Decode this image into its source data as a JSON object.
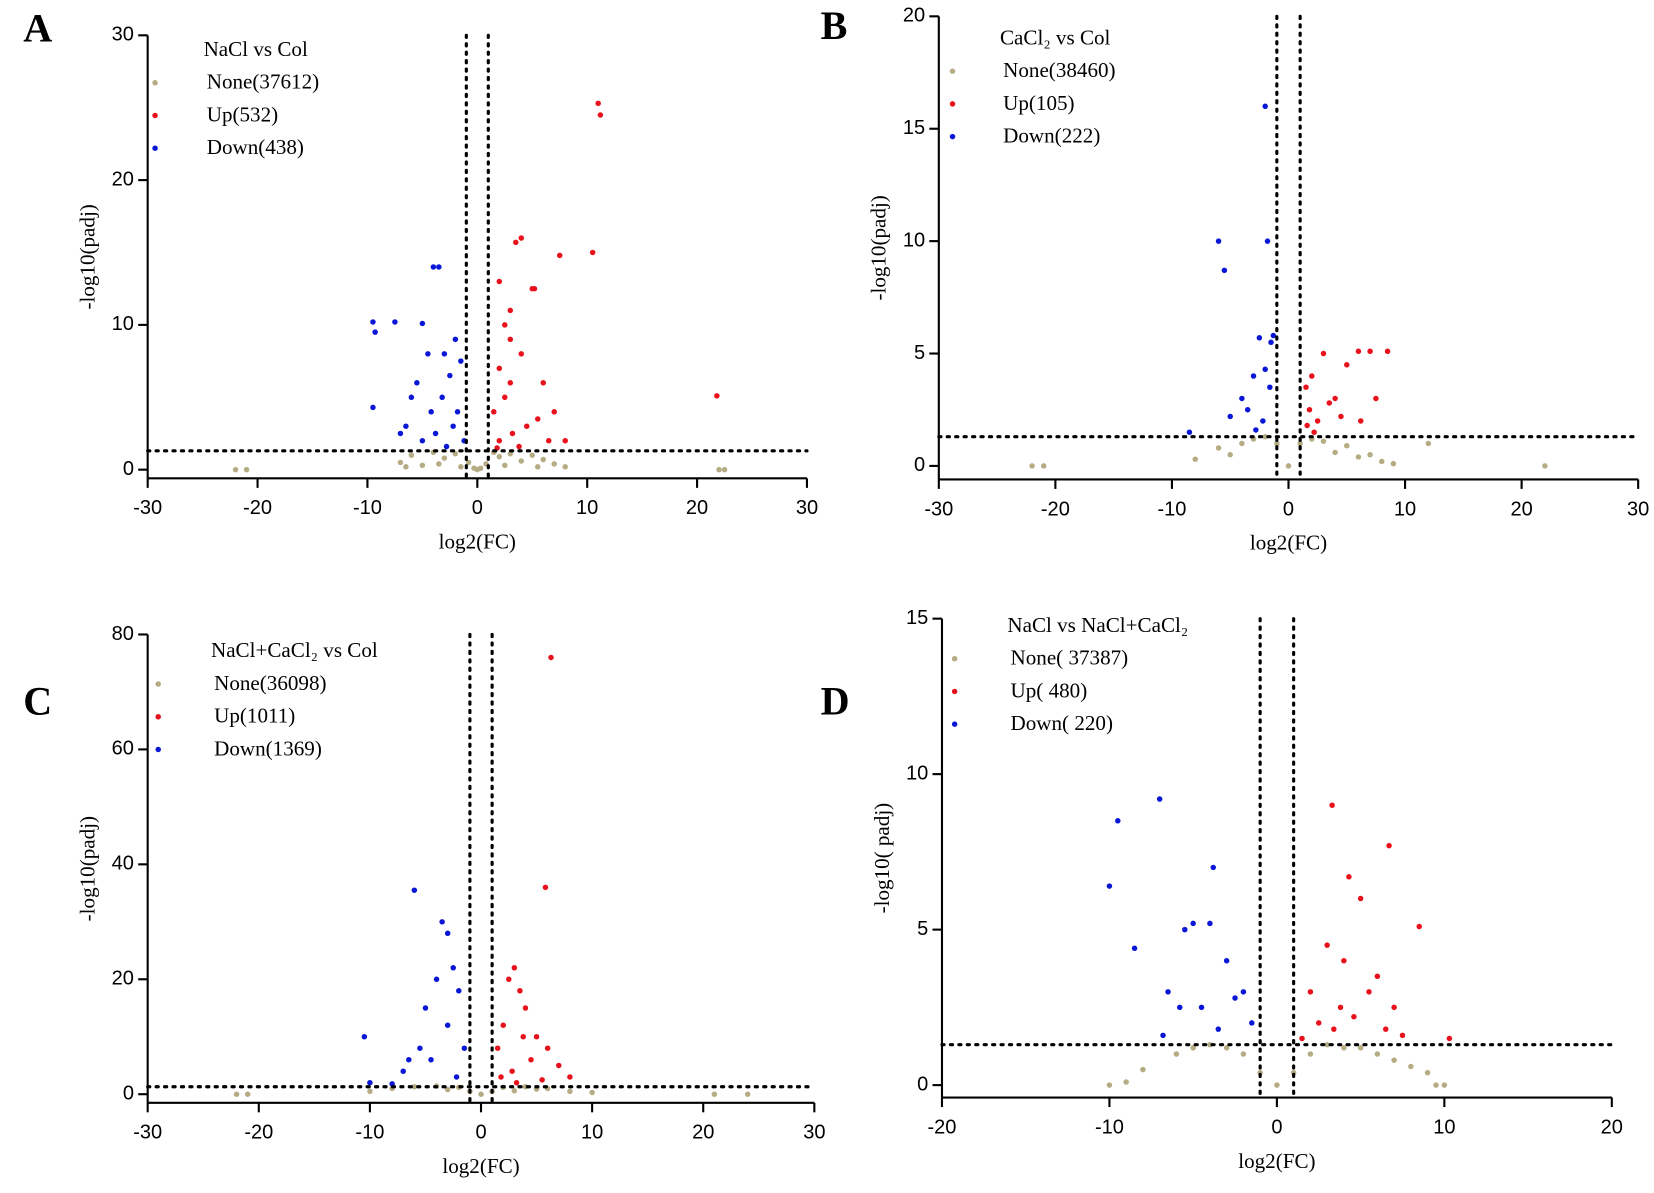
{
  "chart_data": [
    {
      "type": "scatter",
      "panel": "A",
      "legend_title": "NaCl vs Col",
      "xlabel": "log2(FC)",
      "ylabel": "-log10(padj)",
      "xlim": [
        -30,
        30
      ],
      "ylim": [
        -0.6,
        30
      ],
      "xticks": [
        -30,
        -20,
        -10,
        0,
        10,
        20,
        30
      ],
      "yticks": [
        0,
        10,
        20,
        30
      ],
      "thresholds": {
        "x": [
          -1,
          1
        ],
        "y": 1.3
      },
      "series": [
        {
          "name": "None(37612)",
          "color": "#b5ac84",
          "x": [
            -22,
            -21,
            -7,
            -6,
            -5,
            -4,
            -3,
            -2,
            -1.5,
            -0.8,
            -0.3,
            0,
            0.3,
            0.8,
            1.5,
            2,
            3,
            4,
            5,
            6,
            7,
            8,
            22,
            22.5,
            -6.5,
            -3.5,
            2.5,
            5.5
          ],
          "y": [
            0,
            0,
            0.5,
            1,
            0.3,
            1.2,
            0.8,
            1.1,
            0.2,
            0.5,
            0.1,
            0,
            0.1,
            0.4,
            1.2,
            0.9,
            1.1,
            0.6,
            1,
            0.7,
            0.4,
            0.2,
            0,
            0,
            0.2,
            0.4,
            0.3,
            0.2
          ]
        },
        {
          "name": "Up(532)",
          "color": "#e8101a",
          "x": [
            11,
            11.2,
            10.5,
            4,
            3.5,
            7.5,
            2,
            3,
            5,
            5.2,
            2.5,
            3,
            4,
            6,
            7,
            2,
            3,
            2.5,
            1.5,
            4.5,
            5.5,
            6.5,
            8,
            3.2,
            21.8,
            2,
            3.8,
            1.8
          ],
          "y": [
            25.3,
            24.5,
            15,
            16,
            15.7,
            14.8,
            13,
            11,
            12.5,
            12.5,
            10,
            9,
            8,
            6,
            4,
            7,
            6,
            5,
            4,
            3,
            3.5,
            2,
            2,
            2.5,
            5.1,
            2,
            1.6,
            1.5
          ]
        },
        {
          "name": "Down(438)",
          "color": "#0a16d6",
          "x": [
            -9.5,
            -9.3,
            -7.5,
            -4,
            -3.5,
            -5,
            -4.5,
            -3,
            -2,
            -1.5,
            -6,
            -5.5,
            -2.5,
            -3.2,
            -4.2,
            -1.8,
            -6.5,
            -7,
            -2.2,
            -3.8,
            -9.5,
            -5,
            -2.8,
            -1.2
          ],
          "y": [
            10.2,
            9.5,
            10.2,
            14,
            14,
            10.1,
            8,
            8,
            9,
            7.5,
            5,
            6,
            6.5,
            5,
            4,
            4,
            3,
            2.5,
            3,
            2.5,
            4.3,
            2,
            1.6,
            2
          ]
        }
      ]
    },
    {
      "type": "scatter",
      "panel": "B",
      "legend_title": "CaCl₂ vs Col",
      "xlabel": "log2(FC)",
      "ylabel": "-log10(padj)",
      "xlim": [
        -30,
        30
      ],
      "ylim": [
        -0.6,
        20
      ],
      "xticks": [
        -30,
        -20,
        -10,
        0,
        10,
        20,
        30
      ],
      "yticks": [
        0,
        5,
        10,
        15,
        20
      ],
      "thresholds": {
        "x": [
          -1,
          1
        ],
        "y": 1.3
      },
      "series": [
        {
          "name": "None(38460)",
          "color": "#b5ac84",
          "x": [
            -22,
            -21,
            -8,
            -6,
            -4,
            -3,
            -2,
            -1,
            0,
            1,
            2,
            3,
            5,
            7,
            8,
            9,
            12,
            22,
            -5,
            4,
            6
          ],
          "y": [
            0,
            0,
            0.3,
            0.8,
            1,
            1.2,
            1.3,
            1,
            0,
            1,
            1.2,
            1.1,
            0.9,
            0.5,
            0.2,
            0.1,
            1,
            0,
            0.5,
            0.6,
            0.4
          ]
        },
        {
          "name": "Up(105)",
          "color": "#e8101a",
          "x": [
            1.5,
            2,
            3,
            4,
            6,
            7,
            8.5,
            5,
            2.5,
            1.8,
            3.5,
            7.5,
            4.5,
            2.2,
            6.2,
            1.6
          ],
          "y": [
            3.5,
            4,
            5,
            3,
            5.1,
            5.1,
            5.1,
            4.5,
            2,
            2.5,
            2.8,
            3,
            2.2,
            1.5,
            2,
            1.8
          ]
        },
        {
          "name": "Down(222)",
          "color": "#0a16d6",
          "x": [
            -6,
            -5.5,
            -2,
            -1.8,
            -1.5,
            -2.5,
            -3,
            -2,
            -1.3,
            -4,
            -5,
            -3.5,
            -1.6,
            -2.2,
            -8.5,
            -2.8
          ],
          "y": [
            10,
            8.7,
            16,
            10,
            5.5,
            5.7,
            4,
            4.3,
            5.8,
            3,
            2.2,
            2.5,
            3.5,
            2,
            1.5,
            1.6
          ]
        }
      ]
    },
    {
      "type": "scatter",
      "panel": "C",
      "legend_title": "NaCl+CaCl₂ vs Col",
      "xlabel": "log2(FC)",
      "ylabel": "-log10(padj)",
      "xlim": [
        -30,
        30
      ],
      "ylim": [
        -1.5,
        80
      ],
      "xticks": [
        -30,
        -20,
        -10,
        0,
        10,
        20,
        30
      ],
      "yticks": [
        0,
        20,
        40,
        60,
        80
      ],
      "thresholds": {
        "x": [
          -1,
          1
        ],
        "y": 1.3
      },
      "series": [
        {
          "name": "None(36098)",
          "color": "#b5ac84",
          "x": [
            -22,
            -21,
            -10,
            -8,
            -6,
            -4,
            -2,
            -1,
            0,
            1,
            2,
            4,
            6,
            8,
            10,
            21,
            24,
            -3,
            3,
            5
          ],
          "y": [
            0,
            0,
            0.5,
            1,
            1.3,
            1.4,
            1.2,
            0.5,
            0,
            0.5,
            1.2,
            1.3,
            1,
            0.5,
            0.3,
            0,
            0,
            0.8,
            0.6,
            0.9
          ]
        },
        {
          "name": "Up(1011)",
          "color": "#e8101a",
          "x": [
            6.3,
            5.8,
            3,
            2.5,
            3.5,
            4,
            5,
            2,
            1.5,
            6,
            7,
            8,
            2.8,
            4.5,
            3.2,
            1.8,
            5.5,
            3.8
          ],
          "y": [
            76,
            36,
            22,
            20,
            18,
            15,
            10,
            12,
            8,
            8,
            5,
            3,
            4,
            6,
            2,
            3,
            2.5,
            10
          ]
        },
        {
          "name": "Down(1369)",
          "color": "#0a16d6",
          "x": [
            -6,
            -3.5,
            -3,
            -4,
            -2.5,
            -2,
            -5,
            -10.5,
            -10,
            -6.5,
            -7,
            -3,
            -1.5,
            -4.5,
            -2.2,
            -5.5,
            -8
          ],
          "y": [
            35.5,
            30,
            28,
            20,
            22,
            18,
            15,
            10,
            2,
            6,
            4,
            12,
            8,
            6,
            3,
            8,
            1.8
          ]
        }
      ]
    },
    {
      "type": "scatter",
      "panel": "D",
      "legend_title": "NaCl vs NaCl+CaCl₂",
      "xlabel": "log2(FC)",
      "ylabel": "-log10( padj)",
      "xlim": [
        -20,
        20
      ],
      "ylim": [
        -0.4,
        15
      ],
      "xticks": [
        -20,
        -10,
        0,
        10,
        20
      ],
      "yticks": [
        0,
        5,
        10,
        15
      ],
      "thresholds": {
        "x": [
          -1,
          1
        ],
        "y": 1.3
      },
      "series": [
        {
          "name": "None( 37387)",
          "color": "#b5ac84",
          "x": [
            -10,
            -8,
            -6,
            -5,
            -4,
            -3,
            -2,
            -1,
            0,
            1,
            2,
            3,
            4,
            5,
            6,
            7,
            8,
            9,
            10,
            -9,
            9.5
          ],
          "y": [
            0,
            0.5,
            1,
            1.2,
            1.3,
            1.2,
            1,
            0.4,
            0,
            0.4,
            1,
            1.3,
            1.2,
            1.2,
            1,
            0.8,
            0.6,
            0.4,
            0,
            0.1,
            0
          ]
        },
        {
          "name": "Up( 480)",
          "color": "#e8101a",
          "x": [
            3.3,
            6.7,
            4.3,
            5,
            8.5,
            3,
            2,
            4,
            6,
            7,
            2.5,
            3.8,
            5.5,
            6.5,
            7.5,
            10.3,
            1.5,
            4.6,
            3.4
          ],
          "y": [
            9,
            7.7,
            6.7,
            6,
            5.1,
            4.5,
            3,
            4,
            3.5,
            2.5,
            2,
            2.5,
            3,
            1.8,
            1.6,
            1.5,
            1.5,
            2.2,
            1.8
          ]
        },
        {
          "name": "Down( 220)",
          "color": "#0a16d6",
          "x": [
            -7,
            -9.5,
            -10,
            -3.8,
            -5.5,
            -5,
            -4,
            -8.5,
            -3,
            -2,
            -6.5,
            -4.5,
            -2.5,
            -3.5,
            -1.5,
            -6.8,
            -5.8
          ],
          "y": [
            9.2,
            8.5,
            6.4,
            7,
            5,
            5.2,
            5.2,
            4.4,
            4,
            3,
            3,
            2.5,
            2.8,
            1.8,
            2,
            1.6,
            2.5
          ]
        }
      ]
    }
  ]
}
